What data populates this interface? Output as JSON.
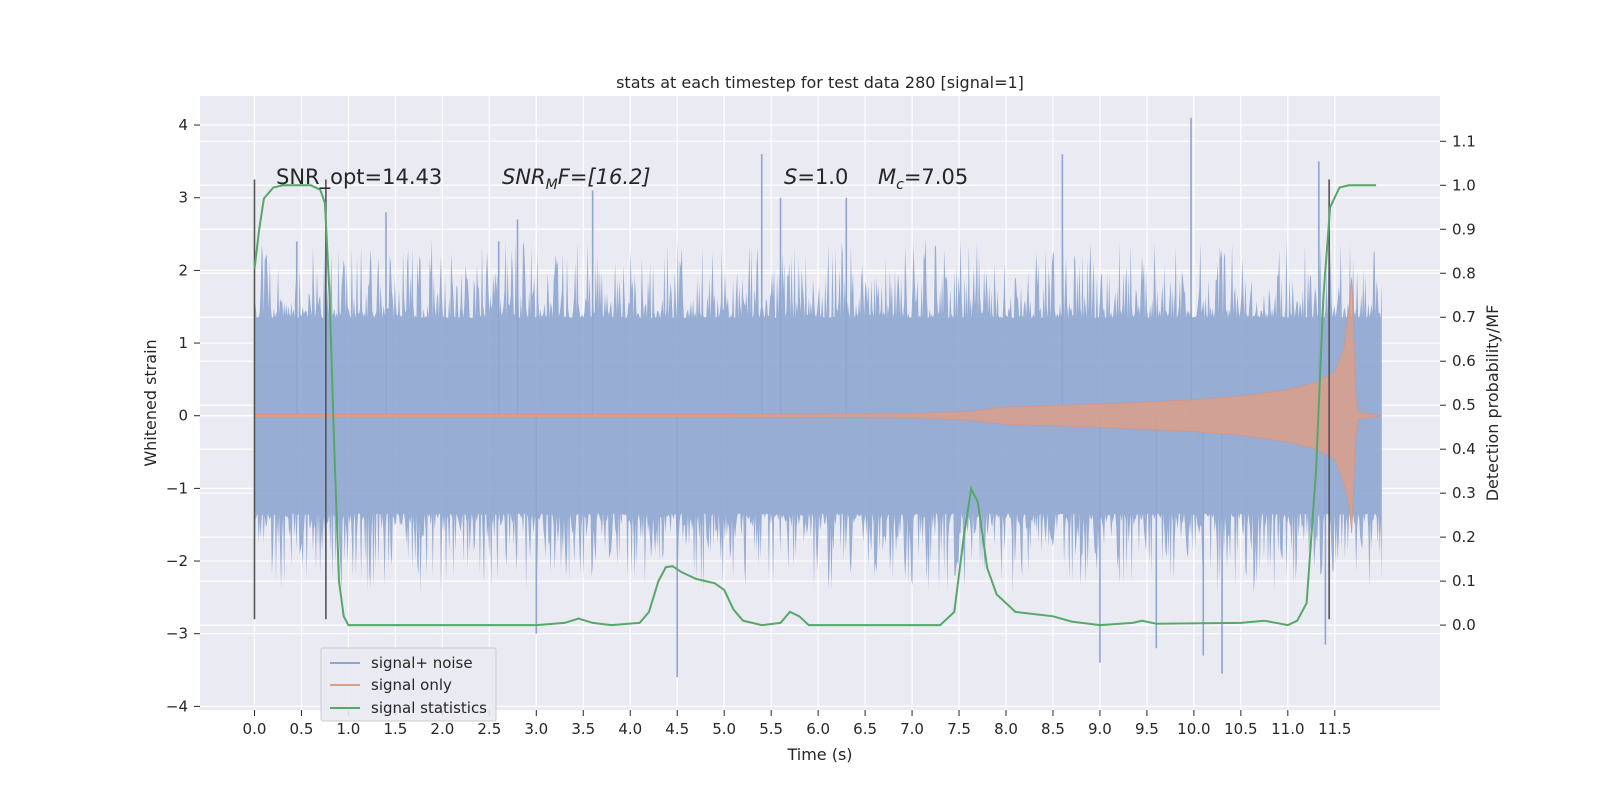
{
  "chart_data": {
    "type": "line",
    "title": "stats at each timestep for test data 280 [signal=1]",
    "xlabel": "Time (s)",
    "ylabel": "Whitened strain",
    "y2label": "Detection probability/MF",
    "xlim": [
      -0.58,
      12.62
    ],
    "ylim": [
      -4.05,
      4.4
    ],
    "y2lim": [
      -0.193,
      1.203
    ],
    "xticks": [
      "0.0",
      "0.5",
      "1.0",
      "1.5",
      "2.0",
      "2.5",
      "3.0",
      "3.5",
      "4.0",
      "4.5",
      "5.0",
      "5.5",
      "6.0",
      "6.5",
      "7.0",
      "7.5",
      "8.0",
      "8.5",
      "9.0",
      "9.5",
      "10.0",
      "10.5",
      "11.0",
      "11.5"
    ],
    "yticks": [
      "4",
      "3",
      "2",
      "1",
      "0",
      "−1",
      "−2",
      "−3",
      "−4"
    ],
    "y2ticks": [
      "1.1",
      "1.0",
      "0.9",
      "0.8",
      "0.7",
      "0.6",
      "0.5",
      "0.4",
      "0.3",
      "0.2",
      "0.1",
      "0.0"
    ],
    "grid": true,
    "legend_position": "bottom-left",
    "annotations": {
      "snr_opt": "SNR_opt=14.43",
      "snr_mf_sym": "SNR",
      "snr_mf_sub": "M",
      "snr_mf_rest": "F=[16.2]",
      "s_sym": "S",
      "s_val": "=1.0",
      "mc_sym": "M",
      "mc_sub": "c",
      "mc_val": "=7.05"
    },
    "vlines_x": [
      0.0,
      0.76,
      11.44
    ],
    "series": [
      {
        "name": "signal+ noise",
        "color": "#8fa6d0",
        "time_range": [
          0.0,
          12.0
        ],
        "typical_band": [
          -1.45,
          1.45
        ],
        "spike_peaks": [
          {
            "x": 0.45,
            "y": 2.4
          },
          {
            "x": 1.4,
            "y": 2.8
          },
          {
            "x": 2.6,
            "y": 2.4
          },
          {
            "x": 2.8,
            "y": 2.7
          },
          {
            "x": 3.6,
            "y": 3.1
          },
          {
            "x": 5.4,
            "y": 3.6
          },
          {
            "x": 5.6,
            "y": 3.0
          },
          {
            "x": 6.3,
            "y": 3.0
          },
          {
            "x": 8.6,
            "y": 3.6
          },
          {
            "x": 9.97,
            "y": 4.1
          },
          {
            "x": 11.33,
            "y": 3.5
          },
          {
            "x": 4.5,
            "y": -3.6
          },
          {
            "x": 10.3,
            "y": -3.55
          },
          {
            "x": 9.0,
            "y": -3.4
          },
          {
            "x": 10.1,
            "y": -3.3
          },
          {
            "x": 3.0,
            "y": -3.0
          },
          {
            "x": 9.6,
            "y": -3.2
          },
          {
            "x": 11.4,
            "y": -3.15
          }
        ]
      },
      {
        "name": "signal only",
        "color": "#dc9f8a",
        "envelope": [
          {
            "x": 0.0,
            "y": 0.02
          },
          {
            "x": 5.0,
            "y": 0.02
          },
          {
            "x": 7.0,
            "y": 0.03
          },
          {
            "x": 7.6,
            "y": 0.06
          },
          {
            "x": 8.0,
            "y": 0.12
          },
          {
            "x": 9.0,
            "y": 0.16
          },
          {
            "x": 10.0,
            "y": 0.22
          },
          {
            "x": 10.5,
            "y": 0.27
          },
          {
            "x": 11.0,
            "y": 0.36
          },
          {
            "x": 11.3,
            "y": 0.46
          },
          {
            "x": 11.5,
            "y": 0.6
          },
          {
            "x": 11.6,
            "y": 0.95
          },
          {
            "x": 11.65,
            "y": 1.45
          },
          {
            "x": 11.68,
            "y": 1.9
          },
          {
            "x": 11.7,
            "y": 1.2
          },
          {
            "x": 11.72,
            "y": 0.3
          },
          {
            "x": 11.75,
            "y": 0.05
          },
          {
            "x": 12.0,
            "y": 0.0
          }
        ]
      },
      {
        "name": "signal statistics",
        "color": "#55a868",
        "axis": "right",
        "points": [
          {
            "x": 0.0,
            "y": 0.81
          },
          {
            "x": 0.05,
            "y": 0.9
          },
          {
            "x": 0.1,
            "y": 0.97
          },
          {
            "x": 0.2,
            "y": 0.995
          },
          {
            "x": 0.3,
            "y": 1.0
          },
          {
            "x": 0.6,
            "y": 1.0
          },
          {
            "x": 0.7,
            "y": 0.99
          },
          {
            "x": 0.75,
            "y": 0.96
          },
          {
            "x": 0.8,
            "y": 0.75
          },
          {
            "x": 0.85,
            "y": 0.4
          },
          {
            "x": 0.9,
            "y": 0.1
          },
          {
            "x": 0.95,
            "y": 0.02
          },
          {
            "x": 1.0,
            "y": 0.0
          },
          {
            "x": 1.5,
            "y": 0.0
          },
          {
            "x": 3.0,
            "y": 0.0
          },
          {
            "x": 3.3,
            "y": 0.005
          },
          {
            "x": 3.45,
            "y": 0.015
          },
          {
            "x": 3.6,
            "y": 0.005
          },
          {
            "x": 3.8,
            "y": 0.0
          },
          {
            "x": 4.1,
            "y": 0.005
          },
          {
            "x": 4.2,
            "y": 0.03
          },
          {
            "x": 4.3,
            "y": 0.1
          },
          {
            "x": 4.38,
            "y": 0.132
          },
          {
            "x": 4.45,
            "y": 0.134
          },
          {
            "x": 4.55,
            "y": 0.12
          },
          {
            "x": 4.7,
            "y": 0.105
          },
          {
            "x": 4.9,
            "y": 0.095
          },
          {
            "x": 5.0,
            "y": 0.08
          },
          {
            "x": 5.1,
            "y": 0.035
          },
          {
            "x": 5.2,
            "y": 0.01
          },
          {
            "x": 5.4,
            "y": 0.0
          },
          {
            "x": 5.6,
            "y": 0.005
          },
          {
            "x": 5.7,
            "y": 0.03
          },
          {
            "x": 5.8,
            "y": 0.02
          },
          {
            "x": 5.9,
            "y": 0.0
          },
          {
            "x": 7.3,
            "y": 0.0
          },
          {
            "x": 7.45,
            "y": 0.03
          },
          {
            "x": 7.55,
            "y": 0.2
          },
          {
            "x": 7.63,
            "y": 0.31
          },
          {
            "x": 7.7,
            "y": 0.28
          },
          {
            "x": 7.8,
            "y": 0.13
          },
          {
            "x": 7.9,
            "y": 0.07
          },
          {
            "x": 8.1,
            "y": 0.03
          },
          {
            "x": 8.5,
            "y": 0.02
          },
          {
            "x": 8.7,
            "y": 0.008
          },
          {
            "x": 9.0,
            "y": 0.0
          },
          {
            "x": 9.35,
            "y": 0.005
          },
          {
            "x": 9.45,
            "y": 0.01
          },
          {
            "x": 9.6,
            "y": 0.003
          },
          {
            "x": 10.5,
            "y": 0.005
          },
          {
            "x": 10.75,
            "y": 0.01
          },
          {
            "x": 11.0,
            "y": 0.0
          },
          {
            "x": 11.1,
            "y": 0.01
          },
          {
            "x": 11.2,
            "y": 0.05
          },
          {
            "x": 11.3,
            "y": 0.35
          },
          {
            "x": 11.38,
            "y": 0.75
          },
          {
            "x": 11.45,
            "y": 0.95
          },
          {
            "x": 11.55,
            "y": 0.995
          },
          {
            "x": 11.65,
            "y": 1.0
          },
          {
            "x": 11.94,
            "y": 1.0
          }
        ]
      }
    ]
  }
}
